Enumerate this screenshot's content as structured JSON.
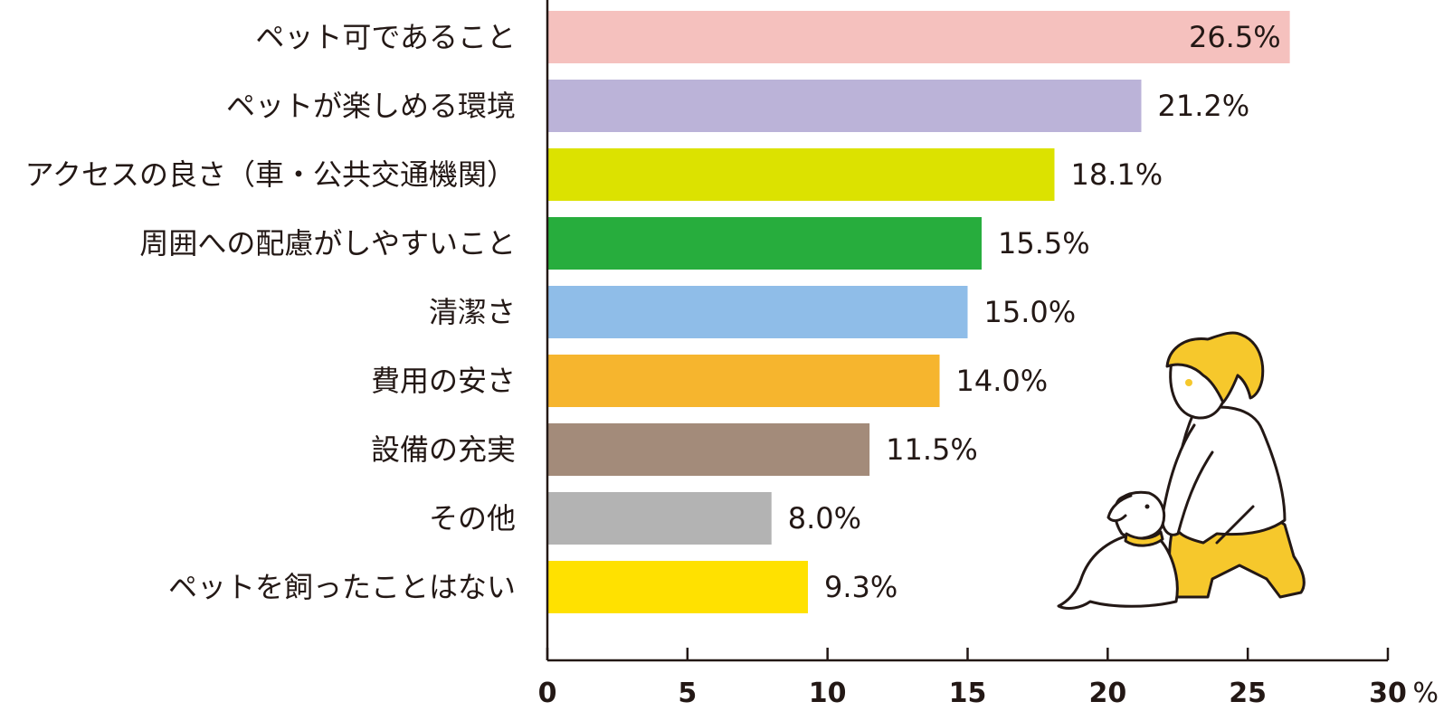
{
  "chart_data": {
    "type": "bar",
    "orientation": "horizontal",
    "categories": [
      "ペット可であること",
      "ペットが楽しめる環境",
      "アクセスの良さ（車・公共交通機関）",
      "周囲への配慮がしやすいこと",
      "清潔さ",
      "費用の安さ",
      "設備の充実",
      "その他",
      "ペットを飼ったことはない"
    ],
    "values": [
      26.5,
      21.2,
      18.1,
      15.5,
      15.0,
      14.0,
      11.5,
      8.0,
      9.3
    ],
    "value_labels": [
      "26.5%",
      "21.2%",
      "18.1%",
      "15.5%",
      "15.0%",
      "14.0%",
      "11.5%",
      "8.0%",
      "9.3%"
    ],
    "colors": [
      "#f5c1be",
      "#bbb3d8",
      "#dce200",
      "#27ad3d",
      "#8fbde8",
      "#f6b52e",
      "#a38b7a",
      "#b3b3b3",
      "#ffe100"
    ],
    "x_ticks": [
      "0",
      "5",
      "10",
      "15",
      "20",
      "25",
      "30"
    ],
    "xlim": [
      0,
      30
    ],
    "unit": "%",
    "grid": false,
    "illustration": "woman-with-dog"
  }
}
